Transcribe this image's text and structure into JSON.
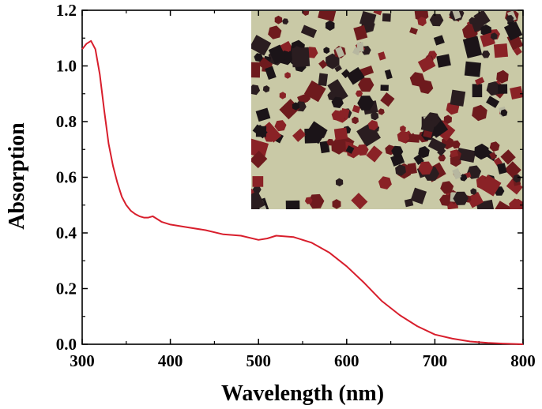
{
  "chart_data": {
    "type": "line",
    "title": "",
    "xlabel": "Wavelength (nm)",
    "ylabel": "Absorption",
    "xlim": [
      300,
      800
    ],
    "ylim": [
      0.0,
      1.2
    ],
    "x_ticks": [
      300,
      400,
      500,
      600,
      700,
      800
    ],
    "y_ticks": [
      0.0,
      0.2,
      0.4,
      0.6,
      0.8,
      1.0,
      1.2
    ],
    "x_tick_labels": [
      "300",
      "400",
      "500",
      "600",
      "700",
      "800"
    ],
    "y_tick_labels": [
      "0.0",
      "0.2",
      "0.4",
      "0.6",
      "0.8",
      "1.0",
      "1.2"
    ],
    "grid": false,
    "legend": "none",
    "series": [
      {
        "color": "#d81e2c",
        "x": [
          300,
          305,
          310,
          315,
          320,
          325,
          330,
          335,
          340,
          345,
          350,
          355,
          360,
          365,
          370,
          375,
          380,
          385,
          390,
          400,
          420,
          440,
          460,
          480,
          500,
          510,
          520,
          540,
          560,
          580,
          600,
          620,
          640,
          660,
          680,
          700,
          720,
          740,
          760,
          780,
          800
        ],
        "y": [
          1.06,
          1.08,
          1.09,
          1.06,
          0.97,
          0.84,
          0.72,
          0.64,
          0.58,
          0.53,
          0.5,
          0.48,
          0.468,
          0.46,
          0.455,
          0.455,
          0.46,
          0.45,
          0.44,
          0.43,
          0.42,
          0.41,
          0.395,
          0.39,
          0.375,
          0.38,
          0.39,
          0.385,
          0.365,
          0.33,
          0.28,
          0.22,
          0.155,
          0.105,
          0.065,
          0.035,
          0.02,
          0.01,
          0.005,
          0.002,
          0.0
        ]
      }
    ]
  },
  "inset": {
    "description_icon": "microscope-photo-crystals",
    "background_color": "#c9c9a6",
    "crystal_colors": [
      "#8a2226",
      "#1b1418",
      "#6e1a1d",
      "#2a1d20",
      "#b7b7a0"
    ]
  }
}
